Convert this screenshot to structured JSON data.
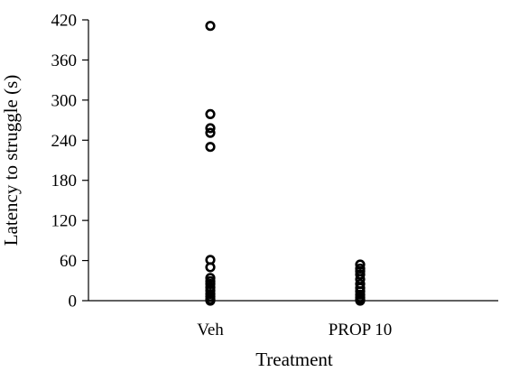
{
  "chart_data": {
    "type": "scatter",
    "title": "",
    "xlabel": "Treatment",
    "ylabel": "Latency to struggle (s)",
    "categories": [
      "Veh",
      "PROP 10"
    ],
    "ylim": [
      0,
      420
    ],
    "yticks": [
      0,
      60,
      120,
      180,
      240,
      300,
      360,
      420
    ],
    "grid": false,
    "legend": "none",
    "marker": "open-circle",
    "series": [
      {
        "category": "Veh",
        "values": [
          411,
          279,
          258,
          251,
          230,
          61,
          50,
          34,
          29,
          25,
          20,
          15,
          10,
          6,
          2,
          0
        ]
      },
      {
        "category": "PROP 10",
        "values": [
          54,
          48,
          44,
          39,
          32,
          25,
          19,
          14,
          9,
          5,
          2,
          0
        ]
      }
    ],
    "colors": {
      "axis": "#000000",
      "marker": "#000000",
      "background": "#ffffff"
    }
  }
}
